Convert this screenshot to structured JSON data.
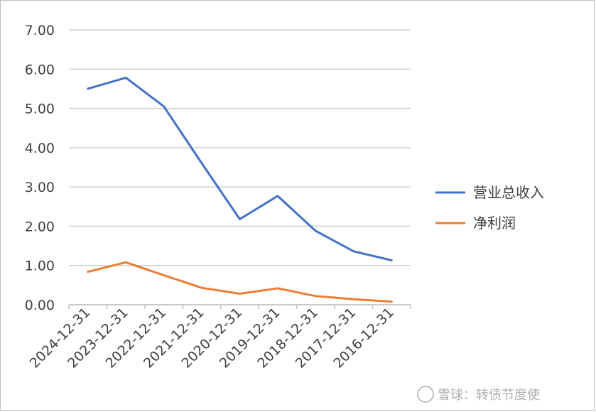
{
  "chart_data": {
    "type": "line",
    "categories": [
      "2024-12-31",
      "2023-12-31",
      "2022-12-31",
      "2021-12-31",
      "2020-12-31",
      "2019-12-31",
      "2018-12-31",
      "2017-12-31",
      "2016-12-31"
    ],
    "series": [
      {
        "name": "营业总收入",
        "color": "#4472c4",
        "values": [
          5.5,
          5.78,
          5.05,
          3.6,
          2.18,
          2.77,
          1.88,
          1.36,
          1.13
        ]
      },
      {
        "name": "净利润",
        "color": "#ed7d31",
        "values": [
          0.84,
          1.08,
          0.75,
          0.43,
          0.28,
          0.42,
          0.22,
          0.14,
          0.08
        ]
      }
    ],
    "yticks": [
      "7.00",
      "6.00",
      "5.00",
      "4.00",
      "3.00",
      "2.00",
      "1.00",
      "0.00"
    ],
    "ylim": [
      0,
      7
    ],
    "grid": true,
    "legend_position": "right"
  },
  "watermark": "雪球：转债节度使"
}
